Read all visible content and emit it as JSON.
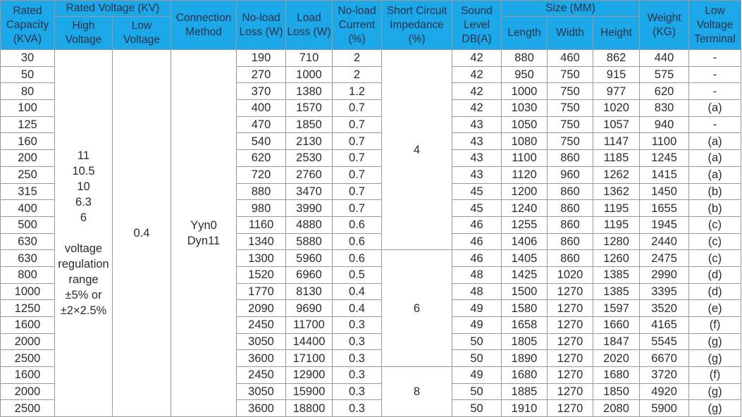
{
  "header": {
    "rated_capacity": "Rated Capacity (KVA)",
    "rated_voltage": "Rated Voltage (KV)",
    "high_voltage": "High Voltage",
    "low_voltage": "Low Voltage",
    "connection_method": "Connection Method",
    "no_load_loss": "No-load Loss (W)",
    "load_loss": "Load Loss (W)",
    "no_load_current": "No-load Current (%)",
    "short_circuit_impedance": "Short Circuit Impedance (%)",
    "sound_level": "Sound Level DB(A)",
    "size": "Size (MM)",
    "length": "Length",
    "width": "Width",
    "height": "Height",
    "weight": "Weight (KG)",
    "low_voltage_terminal": "Low Voltage Terminal"
  },
  "merged": {
    "high_voltage_lines": [
      "11",
      "10.5",
      "10",
      "6.3",
      "6",
      "",
      "voltage",
      "regulation",
      "range",
      "±5% or",
      "±2×2.5%"
    ],
    "low_voltage": "0.4",
    "connection_lines": [
      "Yyn0",
      "Dyn11"
    ],
    "impedance_groups": [
      {
        "value": "4",
        "rows": 12
      },
      {
        "value": "6",
        "rows": 7
      },
      {
        "value": "8",
        "rows": 3
      }
    ]
  },
  "rows": [
    [
      "30",
      "190",
      "710",
      "2",
      "42",
      "880",
      "460",
      "862",
      "440",
      "-"
    ],
    [
      "50",
      "270",
      "1000",
      "2",
      "42",
      "950",
      "750",
      "915",
      "575",
      "-"
    ],
    [
      "80",
      "370",
      "1380",
      "1.2",
      "42",
      "1000",
      "750",
      "977",
      "620",
      "-"
    ],
    [
      "100",
      "400",
      "1570",
      "0.7",
      "42",
      "1030",
      "750",
      "1020",
      "830",
      "(a)"
    ],
    [
      "125",
      "470",
      "1850",
      "0.7",
      "43",
      "1050",
      "750",
      "1057",
      "940",
      "-"
    ],
    [
      "160",
      "540",
      "2130",
      "0.7",
      "43",
      "1080",
      "750",
      "1147",
      "1100",
      "(a)"
    ],
    [
      "200",
      "620",
      "2530",
      "0.7",
      "43",
      "1100",
      "860",
      "1185",
      "1245",
      "(a)"
    ],
    [
      "250",
      "720",
      "2760",
      "0.7",
      "43",
      "1120",
      "960",
      "1262",
      "1415",
      "(a)"
    ],
    [
      "315",
      "880",
      "3470",
      "0.7",
      "45",
      "1200",
      "860",
      "1362",
      "1450",
      "(b)"
    ],
    [
      "400",
      "980",
      "3990",
      "0.7",
      "45",
      "1240",
      "860",
      "1195",
      "1655",
      "(b)"
    ],
    [
      "500",
      "1160",
      "4880",
      "0.6",
      "46",
      "1255",
      "860",
      "1195",
      "1945",
      "(c)"
    ],
    [
      "630",
      "1340",
      "5880",
      "0.6",
      "46",
      "1406",
      "860",
      "1280",
      "2440",
      "(c)"
    ],
    [
      "630",
      "1300",
      "5960",
      "0.6",
      "46",
      "1405",
      "860",
      "1260",
      "2475",
      "(c)"
    ],
    [
      "800",
      "1520",
      "6960",
      "0.5",
      "48",
      "1425",
      "1020",
      "1385",
      "2990",
      "(d)"
    ],
    [
      "1000",
      "1770",
      "8130",
      "0.4",
      "48",
      "1500",
      "1270",
      "1385",
      "3395",
      "(d)"
    ],
    [
      "1250",
      "2090",
      "9690",
      "0.4",
      "49",
      "1580",
      "1270",
      "1597",
      "3520",
      "(e)"
    ],
    [
      "1600",
      "2450",
      "11700",
      "0.3",
      "49",
      "1658",
      "1270",
      "1660",
      "4165",
      "(f)"
    ],
    [
      "2000",
      "3050",
      "14400",
      "0.3",
      "50",
      "1805",
      "1270",
      "1847",
      "5545",
      "(g)"
    ],
    [
      "2500",
      "3600",
      "17100",
      "0.3",
      "50",
      "1890",
      "1270",
      "2020",
      "6670",
      "(g)"
    ],
    [
      "1600",
      "2450",
      "12900",
      "0.3",
      "49",
      "1680",
      "1270",
      "1680",
      "3720",
      "(f)"
    ],
    [
      "2000",
      "3050",
      "15900",
      "0.3",
      "50",
      "1885",
      "1270",
      "1850",
      "4920",
      "(g)"
    ],
    [
      "2500",
      "3600",
      "18800",
      "0.3",
      "50",
      "1910",
      "1270",
      "2080",
      "5900",
      "(g)"
    ]
  ],
  "colors": {
    "header_bg": "#1ca7e8",
    "header_text": "#27344a",
    "grid": "#9a9a9a"
  }
}
